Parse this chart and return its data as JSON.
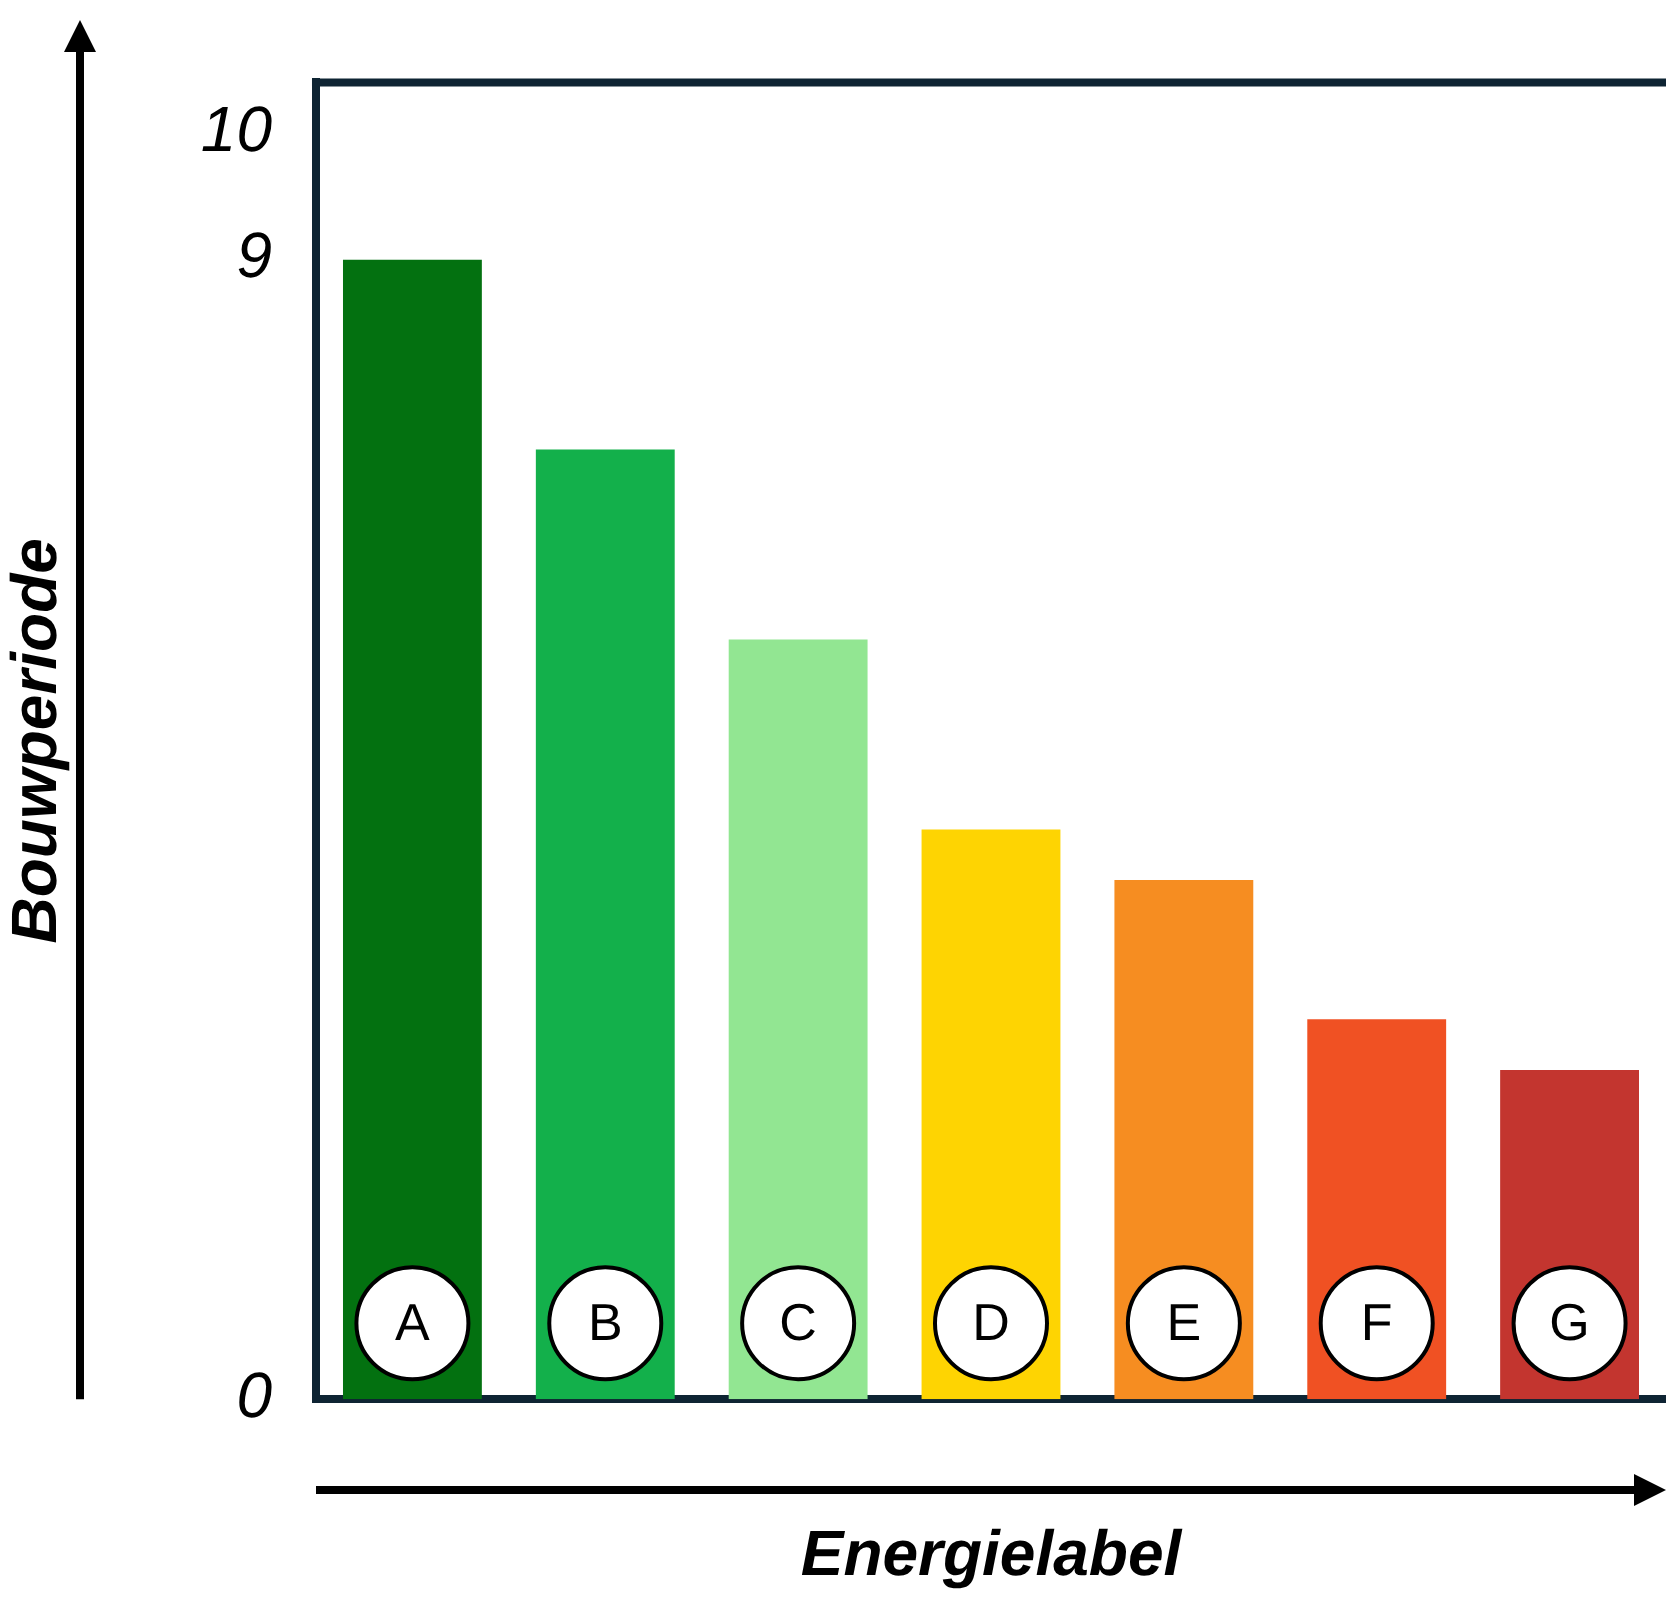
{
  "chart_data": {
    "type": "bar",
    "xlabel": "Energielabel",
    "ylabel": "Bouwperiode",
    "categories": [
      "A",
      "B",
      "C",
      "D",
      "E",
      "F",
      "G"
    ],
    "values": [
      9,
      7.5,
      6,
      4.5,
      4.1,
      3,
      2.6
    ],
    "colors": [
      "#037110",
      "#13b04b",
      "#92e692",
      "#fed402",
      "#f68d21",
      "#f05123",
      "#c3352f"
    ],
    "ylim": [
      0,
      10.4
    ],
    "yticks": [
      0,
      9,
      10
    ]
  }
}
